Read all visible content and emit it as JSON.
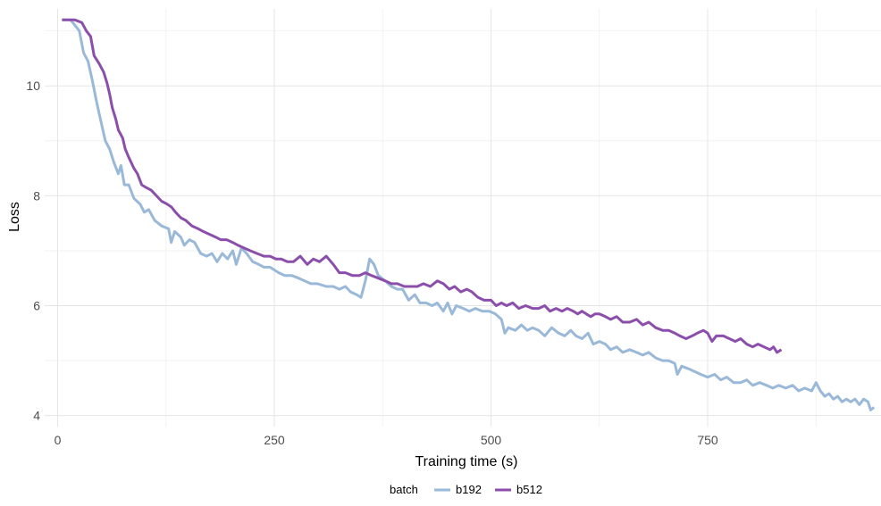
{
  "chart_data": {
    "type": "line",
    "title": "",
    "xlabel": "Training time (s)",
    "ylabel": "Loss",
    "xlim": [
      -15,
      950
    ],
    "ylim": [
      3.8,
      11.4
    ],
    "x_ticks": [
      0,
      250,
      500,
      750
    ],
    "x_tick_labels": [
      "0",
      "250",
      "500",
      "750"
    ],
    "y_ticks": [
      4,
      6,
      8,
      10
    ],
    "y_tick_labels": [
      "4",
      "6",
      "8",
      "10"
    ],
    "grid": true,
    "legend": {
      "title": "batch",
      "position": "bottom"
    },
    "series": [
      {
        "name": "b192",
        "color": "#9ab8d8",
        "points": [
          [
            5,
            11.2
          ],
          [
            15,
            11.2
          ],
          [
            25,
            11.0
          ],
          [
            30,
            10.6
          ],
          [
            35,
            10.45
          ],
          [
            40,
            10.1
          ],
          [
            45,
            9.7
          ],
          [
            50,
            9.35
          ],
          [
            55,
            9.0
          ],
          [
            60,
            8.85
          ],
          [
            65,
            8.6
          ],
          [
            70,
            8.4
          ],
          [
            73,
            8.55
          ],
          [
            77,
            8.2
          ],
          [
            82,
            8.2
          ],
          [
            88,
            7.95
          ],
          [
            95,
            7.85
          ],
          [
            100,
            7.7
          ],
          [
            105,
            7.75
          ],
          [
            112,
            7.55
          ],
          [
            120,
            7.45
          ],
          [
            128,
            7.4
          ],
          [
            131,
            7.15
          ],
          [
            135,
            7.35
          ],
          [
            142,
            7.25
          ],
          [
            146,
            7.1
          ],
          [
            152,
            7.2
          ],
          [
            158,
            7.15
          ],
          [
            165,
            6.95
          ],
          [
            172,
            6.9
          ],
          [
            178,
            6.95
          ],
          [
            184,
            6.8
          ],
          [
            190,
            6.95
          ],
          [
            196,
            6.85
          ],
          [
            202,
            7.0
          ],
          [
            206,
            6.75
          ],
          [
            212,
            7.05
          ],
          [
            218,
            6.95
          ],
          [
            225,
            6.8
          ],
          [
            232,
            6.75
          ],
          [
            238,
            6.7
          ],
          [
            245,
            6.7
          ],
          [
            255,
            6.6
          ],
          [
            262,
            6.55
          ],
          [
            270,
            6.55
          ],
          [
            278,
            6.5
          ],
          [
            285,
            6.45
          ],
          [
            292,
            6.4
          ],
          [
            300,
            6.4
          ],
          [
            310,
            6.35
          ],
          [
            318,
            6.35
          ],
          [
            325,
            6.3
          ],
          [
            332,
            6.35
          ],
          [
            338,
            6.25
          ],
          [
            345,
            6.2
          ],
          [
            350,
            6.15
          ],
          [
            355,
            6.45
          ],
          [
            360,
            6.85
          ],
          [
            365,
            6.75
          ],
          [
            370,
            6.55
          ],
          [
            378,
            6.45
          ],
          [
            385,
            6.35
          ],
          [
            392,
            6.3
          ],
          [
            398,
            6.3
          ],
          [
            405,
            6.1
          ],
          [
            412,
            6.2
          ],
          [
            418,
            6.05
          ],
          [
            425,
            6.05
          ],
          [
            432,
            6.0
          ],
          [
            438,
            6.05
          ],
          [
            445,
            5.9
          ],
          [
            450,
            6.05
          ],
          [
            455,
            5.85
          ],
          [
            460,
            6.0
          ],
          [
            468,
            5.95
          ],
          [
            475,
            5.9
          ],
          [
            482,
            5.95
          ],
          [
            490,
            5.9
          ],
          [
            498,
            5.9
          ],
          [
            505,
            5.85
          ],
          [
            512,
            5.75
          ],
          [
            516,
            5.5
          ],
          [
            520,
            5.6
          ],
          [
            528,
            5.55
          ],
          [
            535,
            5.65
          ],
          [
            542,
            5.55
          ],
          [
            548,
            5.6
          ],
          [
            555,
            5.55
          ],
          [
            562,
            5.45
          ],
          [
            570,
            5.6
          ],
          [
            578,
            5.5
          ],
          [
            585,
            5.45
          ],
          [
            592,
            5.55
          ],
          [
            598,
            5.45
          ],
          [
            605,
            5.4
          ],
          [
            612,
            5.5
          ],
          [
            618,
            5.3
          ],
          [
            625,
            5.35
          ],
          [
            632,
            5.3
          ],
          [
            638,
            5.2
          ],
          [
            645,
            5.25
          ],
          [
            652,
            5.15
          ],
          [
            660,
            5.2
          ],
          [
            668,
            5.15
          ],
          [
            675,
            5.1
          ],
          [
            682,
            5.15
          ],
          [
            690,
            5.05
          ],
          [
            698,
            5.0
          ],
          [
            705,
            5.0
          ],
          [
            712,
            4.95
          ],
          [
            715,
            4.75
          ],
          [
            720,
            4.9
          ],
          [
            728,
            4.85
          ],
          [
            735,
            4.8
          ],
          [
            742,
            4.75
          ],
          [
            750,
            4.7
          ],
          [
            758,
            4.75
          ],
          [
            765,
            4.65
          ],
          [
            772,
            4.7
          ],
          [
            780,
            4.6
          ],
          [
            788,
            4.6
          ],
          [
            795,
            4.65
          ],
          [
            802,
            4.55
          ],
          [
            810,
            4.6
          ],
          [
            818,
            4.55
          ],
          [
            825,
            4.5
          ],
          [
            832,
            4.55
          ],
          [
            840,
            4.5
          ],
          [
            848,
            4.55
          ],
          [
            855,
            4.45
          ],
          [
            862,
            4.5
          ],
          [
            870,
            4.45
          ],
          [
            875,
            4.6
          ],
          [
            880,
            4.45
          ],
          [
            885,
            4.35
          ],
          [
            890,
            4.4
          ],
          [
            895,
            4.3
          ],
          [
            900,
            4.35
          ],
          [
            905,
            4.25
          ],
          [
            910,
            4.3
          ],
          [
            915,
            4.25
          ],
          [
            920,
            4.3
          ],
          [
            925,
            4.2
          ],
          [
            930,
            4.3
          ],
          [
            935,
            4.25
          ],
          [
            938,
            4.1
          ],
          [
            942,
            4.15
          ]
        ]
      },
      {
        "name": "b512",
        "color": "#8b4fab",
        "points": [
          [
            5,
            11.2
          ],
          [
            20,
            11.2
          ],
          [
            28,
            11.15
          ],
          [
            33,
            11.0
          ],
          [
            38,
            10.9
          ],
          [
            42,
            10.55
          ],
          [
            48,
            10.4
          ],
          [
            53,
            10.25
          ],
          [
            57,
            10.05
          ],
          [
            60,
            9.85
          ],
          [
            63,
            9.6
          ],
          [
            67,
            9.4
          ],
          [
            70,
            9.2
          ],
          [
            75,
            9.05
          ],
          [
            78,
            8.85
          ],
          [
            82,
            8.7
          ],
          [
            88,
            8.5
          ],
          [
            92,
            8.4
          ],
          [
            97,
            8.2
          ],
          [
            102,
            8.15
          ],
          [
            108,
            8.1
          ],
          [
            114,
            8.0
          ],
          [
            120,
            7.9
          ],
          [
            126,
            7.85
          ],
          [
            131,
            7.8
          ],
          [
            136,
            7.7
          ],
          [
            142,
            7.6
          ],
          [
            148,
            7.55
          ],
          [
            155,
            7.45
          ],
          [
            162,
            7.4
          ],
          [
            168,
            7.35
          ],
          [
            175,
            7.3
          ],
          [
            182,
            7.25
          ],
          [
            188,
            7.2
          ],
          [
            195,
            7.2
          ],
          [
            202,
            7.15
          ],
          [
            208,
            7.1
          ],
          [
            215,
            7.05
          ],
          [
            222,
            7.0
          ],
          [
            230,
            6.95
          ],
          [
            238,
            6.9
          ],
          [
            245,
            6.9
          ],
          [
            252,
            6.85
          ],
          [
            258,
            6.85
          ],
          [
            265,
            6.8
          ],
          [
            272,
            6.8
          ],
          [
            280,
            6.9
          ],
          [
            288,
            6.75
          ],
          [
            295,
            6.85
          ],
          [
            302,
            6.8
          ],
          [
            310,
            6.9
          ],
          [
            318,
            6.75
          ],
          [
            325,
            6.6
          ],
          [
            332,
            6.6
          ],
          [
            340,
            6.55
          ],
          [
            348,
            6.55
          ],
          [
            355,
            6.6
          ],
          [
            362,
            6.55
          ],
          [
            370,
            6.5
          ],
          [
            378,
            6.45
          ],
          [
            385,
            6.4
          ],
          [
            392,
            6.4
          ],
          [
            400,
            6.35
          ],
          [
            408,
            6.35
          ],
          [
            415,
            6.35
          ],
          [
            422,
            6.4
          ],
          [
            430,
            6.35
          ],
          [
            438,
            6.45
          ],
          [
            445,
            6.4
          ],
          [
            452,
            6.3
          ],
          [
            458,
            6.35
          ],
          [
            465,
            6.25
          ],
          [
            472,
            6.3
          ],
          [
            478,
            6.25
          ],
          [
            485,
            6.15
          ],
          [
            492,
            6.1
          ],
          [
            500,
            6.1
          ],
          [
            506,
            6.0
          ],
          [
            512,
            6.05
          ],
          [
            518,
            6.0
          ],
          [
            525,
            6.05
          ],
          [
            532,
            5.95
          ],
          [
            540,
            6.0
          ],
          [
            548,
            5.95
          ],
          [
            555,
            5.95
          ],
          [
            562,
            6.0
          ],
          [
            568,
            5.9
          ],
          [
            575,
            5.95
          ],
          [
            582,
            5.9
          ],
          [
            588,
            5.95
          ],
          [
            595,
            5.9
          ],
          [
            600,
            5.85
          ],
          [
            605,
            5.9
          ],
          [
            610,
            5.85
          ],
          [
            615,
            5.8
          ],
          [
            620,
            5.85
          ],
          [
            625,
            5.85
          ],
          [
            632,
            5.8
          ],
          [
            638,
            5.75
          ],
          [
            645,
            5.8
          ],
          [
            652,
            5.7
          ],
          [
            660,
            5.7
          ],
          [
            668,
            5.75
          ],
          [
            675,
            5.65
          ],
          [
            682,
            5.7
          ],
          [
            690,
            5.6
          ],
          [
            698,
            5.55
          ],
          [
            705,
            5.55
          ],
          [
            712,
            5.5
          ],
          [
            718,
            5.45
          ],
          [
            725,
            5.4
          ],
          [
            732,
            5.45
          ],
          [
            738,
            5.5
          ],
          [
            745,
            5.55
          ],
          [
            750,
            5.5
          ],
          [
            755,
            5.35
          ],
          [
            760,
            5.45
          ],
          [
            768,
            5.45
          ],
          [
            775,
            5.4
          ],
          [
            782,
            5.35
          ],
          [
            788,
            5.4
          ],
          [
            795,
            5.3
          ],
          [
            802,
            5.25
          ],
          [
            808,
            5.3
          ],
          [
            815,
            5.25
          ],
          [
            822,
            5.2
          ],
          [
            826,
            5.25
          ],
          [
            830,
            5.15
          ],
          [
            835,
            5.2
          ]
        ]
      }
    ]
  }
}
